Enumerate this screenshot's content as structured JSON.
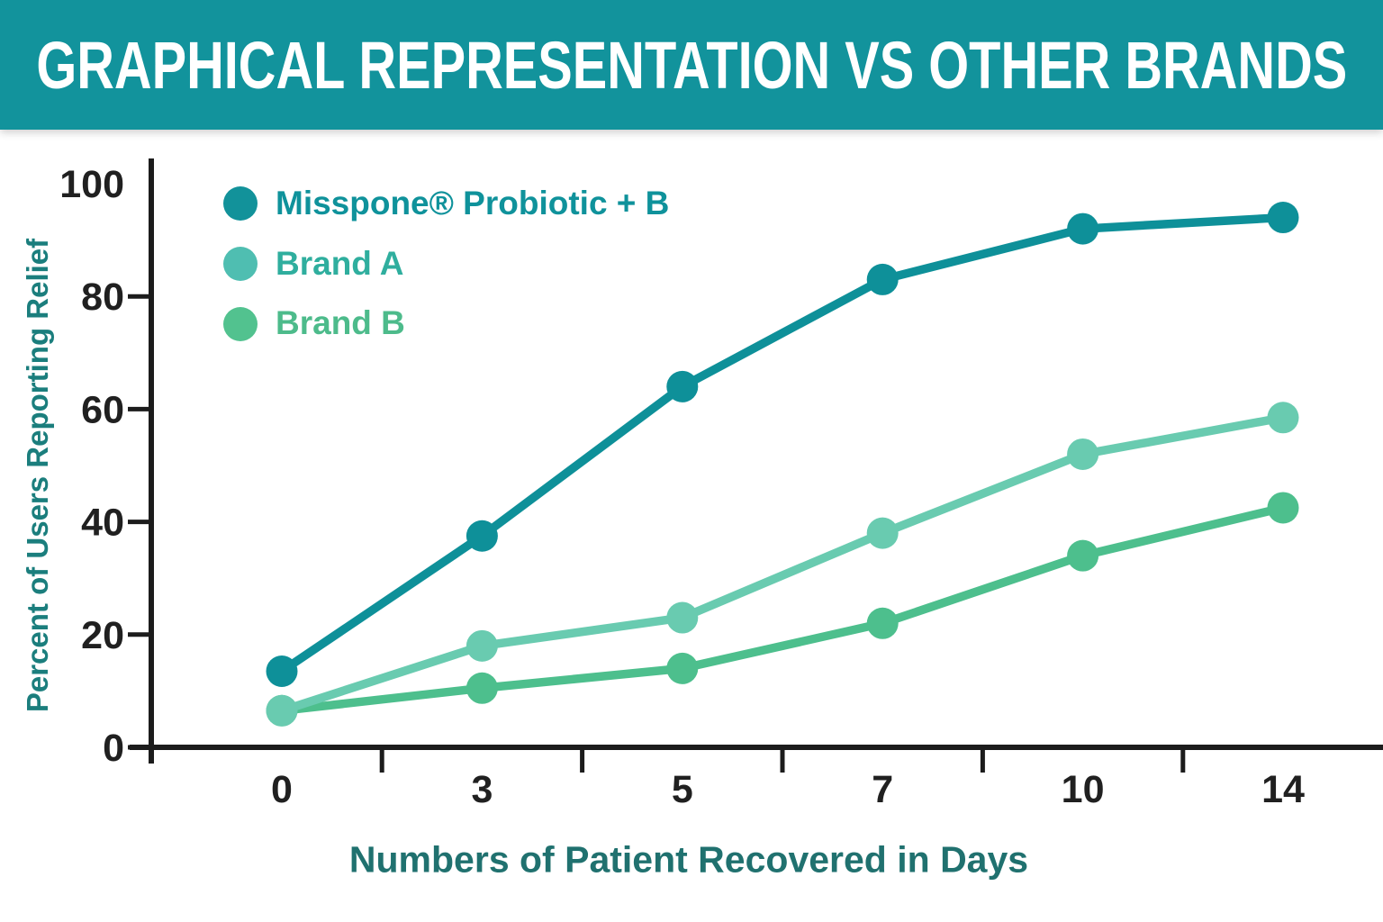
{
  "header": {
    "title": "GRAPHICAL REPRESENTATION VS OTHER BRANDS",
    "background_color": "#12939c",
    "text_color": "#ffffff"
  },
  "chart_data": {
    "type": "line",
    "title": "GRAPHICAL REPRESENTATION VS OTHER BRANDS",
    "xlabel": "Numbers of Patient Recovered in Days",
    "ylabel": "Percent of Users Reporting Relief",
    "categories": [
      "0",
      "3",
      "5",
      "7",
      "10",
      "14"
    ],
    "yticks": [
      0,
      20,
      40,
      60,
      80,
      100
    ],
    "ylim": [
      0,
      100
    ],
    "grid": false,
    "legend_position": "top-left",
    "axis_color": "#1c1c1c",
    "axis_tick_label_color": "#202020",
    "series": [
      {
        "name": "Misspone® Probiotic + B",
        "values": [
          13.5,
          37.5,
          64,
          83,
          92,
          94
        ],
        "color": "#0e9099",
        "legend_color": "#12929a",
        "text_color": "#0f929b"
      },
      {
        "name": "Brand A",
        "values": [
          6.5,
          18,
          23,
          38,
          52,
          58.5
        ],
        "color": "#69cbb0",
        "legend_color": "#4fbeb1",
        "text_color": "#2fae9e"
      },
      {
        "name": "Brand B",
        "values": [
          6.5,
          10.5,
          14,
          22,
          34,
          42.5
        ],
        "color": "#4dbf8d",
        "legend_color": "#52c28f",
        "text_color": "#4dbb8b"
      }
    ]
  }
}
